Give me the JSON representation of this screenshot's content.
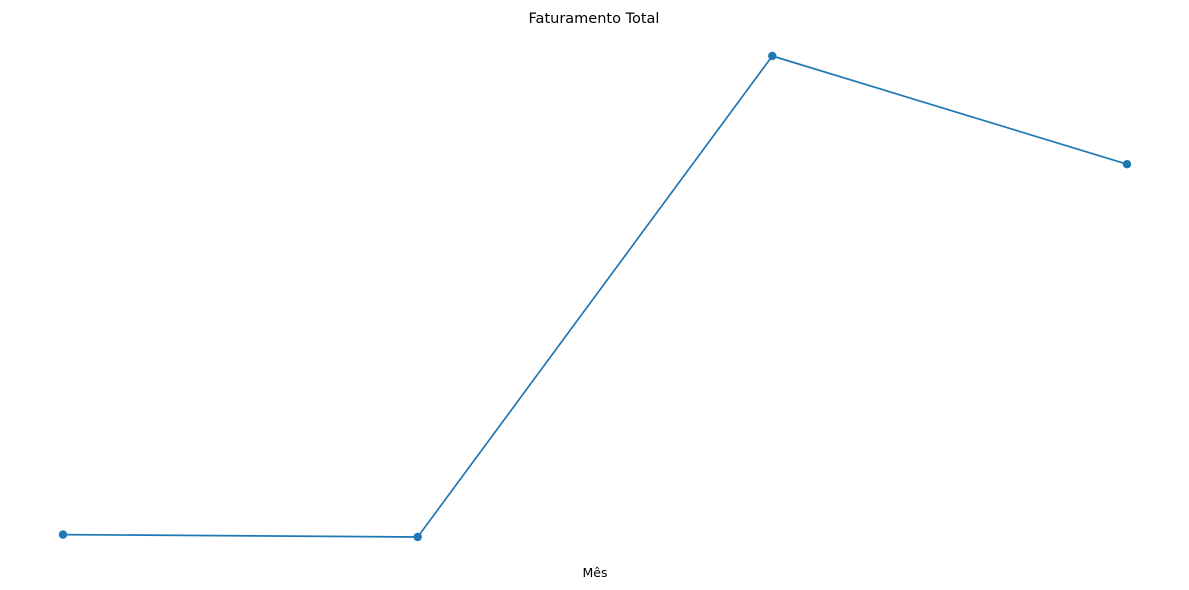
{
  "chart_data": {
    "type": "line",
    "title": "Faturamento Total",
    "xlabel": "Mês",
    "ylabel": "",
    "x": [
      1,
      2,
      3,
      4
    ],
    "series": [
      {
        "values": [
          0.9,
          0.4,
          100.0,
          77.6
        ]
      }
    ],
    "xlim": [
      0.9,
      4.0
    ],
    "ylim": [
      0.1,
      100.0
    ],
    "grid": false,
    "axes_visible": false,
    "line_color": "#1f77b4",
    "marker": "circle"
  }
}
